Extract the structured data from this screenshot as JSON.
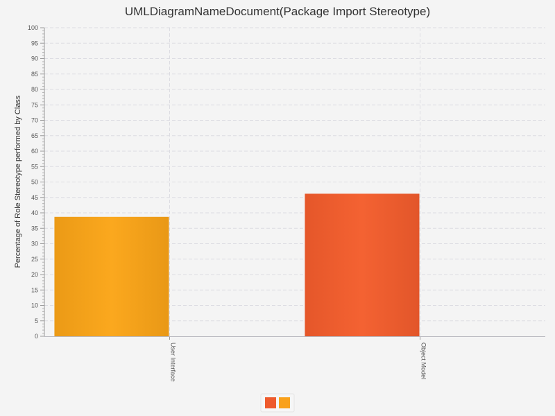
{
  "chart_data": {
    "type": "bar",
    "title": "UMLDiagramNameDocument(Package Import Stereotype)",
    "xlabel": "",
    "ylabel": "Percentage of Role Stereotype performed by Class",
    "categories": [
      "User Interface",
      "Object Model"
    ],
    "series": [
      {
        "name": "",
        "color": "#f9a11b",
        "values": [
          38.7,
          null
        ]
      },
      {
        "name": "",
        "color": "#ee5a2c",
        "values": [
          null,
          46.2
        ]
      }
    ],
    "ylim": [
      0,
      100
    ],
    "ytick_step": 5,
    "yticks": [
      "0",
      "5",
      "10",
      "15",
      "20",
      "25",
      "30",
      "35",
      "40",
      "45",
      "50",
      "55",
      "60",
      "65",
      "70",
      "75",
      "80",
      "85",
      "90",
      "95",
      "100"
    ],
    "grid": true,
    "legend_position": "bottom-center",
    "legend_swatch_colors": [
      "#ee5a2c",
      "#f9a11b"
    ]
  }
}
